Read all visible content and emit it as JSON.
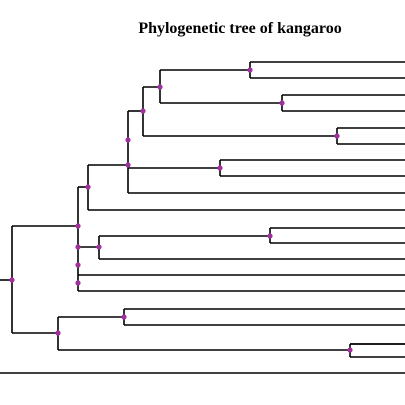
{
  "title": "Phylogenetic tree of kangaroo",
  "colors": {
    "branch": "#000000",
    "node": "#a0309e"
  }
}
